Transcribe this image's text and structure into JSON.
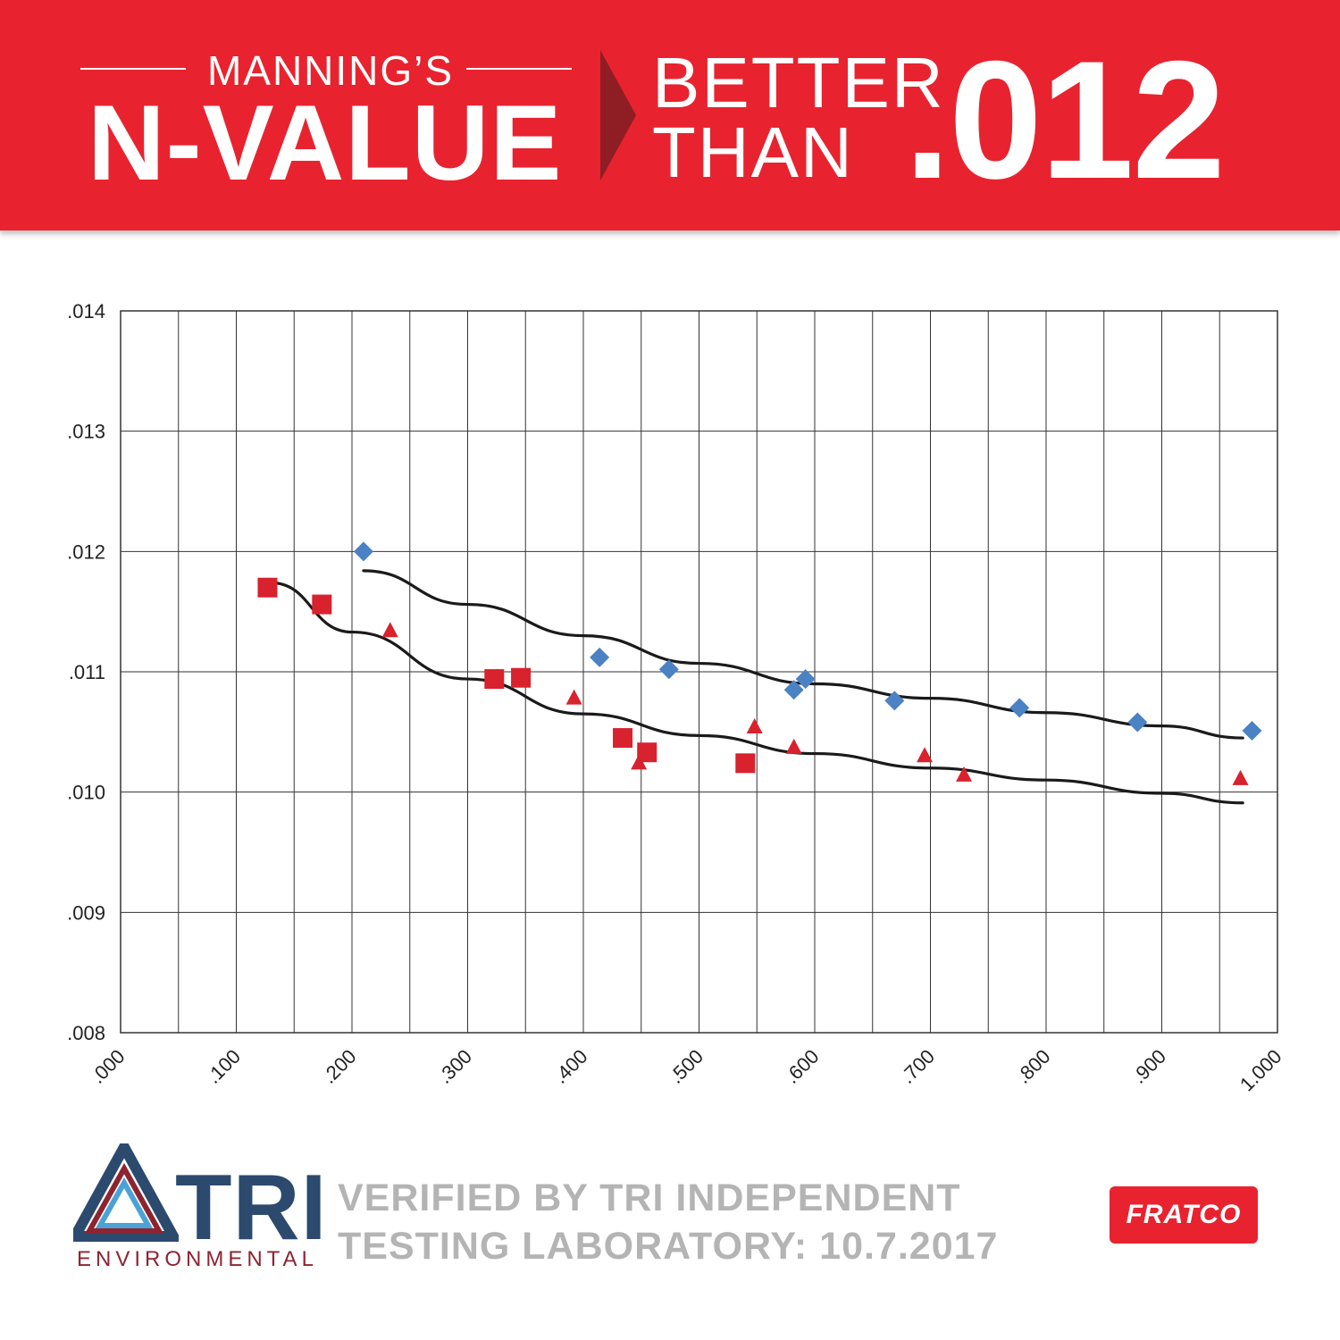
{
  "header": {
    "kicker": "MANNING’S",
    "title": "N-VALUE",
    "better_line1": "BETTER",
    "better_line2": "THAN",
    "value": ".012"
  },
  "footer": {
    "logo_main": "TRI",
    "logo_sub": "ENVIRONMENTAL",
    "verified_line1": "VERIFIED BY TRI INDEPENDENT",
    "verified_line2": "TESTING LABORATORY: 10.7.2017",
    "brand": "FRATCO"
  },
  "colors": {
    "banner": "#e8232f",
    "blue_series": "#4a82c4",
    "red_series": "#d8222d",
    "trend": "#1a1a1a"
  },
  "chart_data": {
    "type": "scatter",
    "xlim": [
      0,
      1.0
    ],
    "ylim": [
      0.008,
      0.014
    ],
    "xticks": [
      ".000",
      ".100",
      ".200",
      ".300",
      ".400",
      ".500",
      ".600",
      ".700",
      ".800",
      ".900",
      "1.000"
    ],
    "yticks": [
      ".008",
      ".009",
      ".010",
      ".011",
      ".012",
      ".013",
      ".014"
    ],
    "grid": true,
    "series": [
      {
        "marker": "diamond",
        "color": "#4a82c4",
        "points": [
          [
            0.21,
            0.012
          ],
          [
            0.414,
            0.01112
          ],
          [
            0.474,
            0.01102
          ],
          [
            0.582,
            0.01085
          ],
          [
            0.592,
            0.01094
          ],
          [
            0.669,
            0.01076
          ],
          [
            0.777,
            0.0107
          ],
          [
            0.879,
            0.01058
          ],
          [
            0.978,
            0.01051
          ]
        ]
      },
      {
        "marker": "square",
        "color": "#d8222d",
        "points": [
          [
            0.127,
            0.0117
          ],
          [
            0.174,
            0.01156
          ],
          [
            0.323,
            0.01094
          ],
          [
            0.346,
            0.01095
          ],
          [
            0.434,
            0.01045
          ],
          [
            0.455,
            0.01033
          ],
          [
            0.54,
            0.01024
          ]
        ]
      },
      {
        "marker": "triangle",
        "color": "#d8222d",
        "points": [
          [
            0.233,
            0.01134
          ],
          [
            0.392,
            0.01078
          ],
          [
            0.448,
            0.01024
          ],
          [
            0.548,
            0.01054
          ],
          [
            0.582,
            0.01037
          ],
          [
            0.695,
            0.0103
          ],
          [
            0.729,
            0.01014
          ],
          [
            0.968,
            0.01011
          ]
        ]
      }
    ],
    "trendlines": [
      {
        "color": "#1a1a1a",
        "points": [
          [
            0.21,
            0.01184
          ],
          [
            0.3,
            0.01156
          ],
          [
            0.4,
            0.0113
          ],
          [
            0.5,
            0.01107
          ],
          [
            0.6,
            0.0109
          ],
          [
            0.7,
            0.01078
          ],
          [
            0.8,
            0.01066
          ],
          [
            0.9,
            0.01055
          ],
          [
            0.97,
            0.01045
          ]
        ]
      },
      {
        "color": "#1a1a1a",
        "points": [
          [
            0.13,
            0.01174
          ],
          [
            0.2,
            0.01133
          ],
          [
            0.3,
            0.01094
          ],
          [
            0.4,
            0.01065
          ],
          [
            0.5,
            0.01047
          ],
          [
            0.6,
            0.01032
          ],
          [
            0.7,
            0.0102
          ],
          [
            0.8,
            0.0101
          ],
          [
            0.9,
            0.00999
          ],
          [
            0.97,
            0.00991
          ]
        ]
      }
    ]
  }
}
